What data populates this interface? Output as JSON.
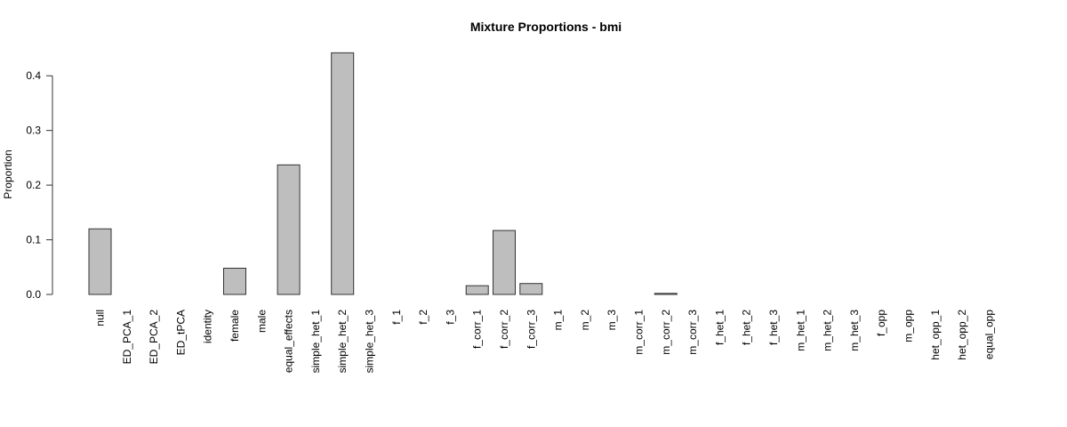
{
  "chart_data": {
    "type": "bar",
    "title": "Mixture Proportions - bmi",
    "xlabel": "",
    "ylabel": "Proportion",
    "ylim": [
      0,
      0.4
    ],
    "yticks": [
      "0.0",
      "0.1",
      "0.2",
      "0.3",
      "0.4"
    ],
    "ytick_values": [
      0,
      0.1,
      0.2,
      0.3,
      0.4
    ],
    "categories": [
      "null",
      "ED_PCA_1",
      "ED_PCA_2",
      "ED_tPCA",
      "identity",
      "female",
      "male",
      "equal_effects",
      "simple_het_1",
      "simple_het_2",
      "simple_het_3",
      "f_1",
      "f_2",
      "f_3",
      "f_corr_1",
      "f_corr_2",
      "f_corr_3",
      "m_1",
      "m_2",
      "m_3",
      "m_corr_1",
      "m_corr_2",
      "m_corr_3",
      "f_het_1",
      "f_het_2",
      "f_het_3",
      "m_het_1",
      "m_het_2",
      "m_het_3",
      "f_opp",
      "m_opp",
      "het_opp_1",
      "het_opp_2",
      "equal_opp"
    ],
    "values": [
      0.12,
      0,
      0,
      0,
      0,
      0.048,
      0,
      0.237,
      0,
      0.442,
      0,
      0,
      0,
      0,
      0.016,
      0.117,
      0.02,
      0,
      0,
      0,
      0,
      0.002,
      0,
      0,
      0,
      0,
      0,
      0,
      0,
      0,
      0,
      0,
      0,
      0
    ],
    "bar_color": "#bebebe",
    "bar_edge_color": "#333333"
  }
}
